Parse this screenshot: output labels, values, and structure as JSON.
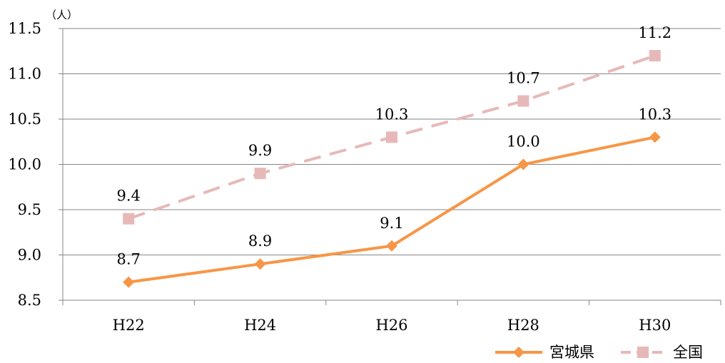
{
  "chart_data": {
    "type": "line",
    "ylabel": "（人）",
    "categories": [
      "H22",
      "H24",
      "H26",
      "H28",
      "H30"
    ],
    "ylim": [
      8.5,
      11.5
    ],
    "yticks": [
      "8.5",
      "9.0",
      "9.5",
      "10.0",
      "10.5",
      "11.0",
      "11.5"
    ],
    "grid": true,
    "legend_position": "bottom-right",
    "series": [
      {
        "name": "宮城県",
        "values": [
          8.7,
          8.9,
          9.1,
          10.0,
          10.3
        ],
        "labels": [
          "8.7",
          "8.9",
          "9.1",
          "10.0",
          "10.3"
        ],
        "color": "#F79646",
        "marker": "diamond",
        "line_style": "solid"
      },
      {
        "name": "全国",
        "values": [
          9.4,
          9.9,
          10.3,
          10.7,
          11.2
        ],
        "labels": [
          "9.4",
          "9.9",
          "10.3",
          "10.7",
          "11.2"
        ],
        "color": "#E6B9B8",
        "marker": "square",
        "line_style": "dashed"
      }
    ]
  }
}
